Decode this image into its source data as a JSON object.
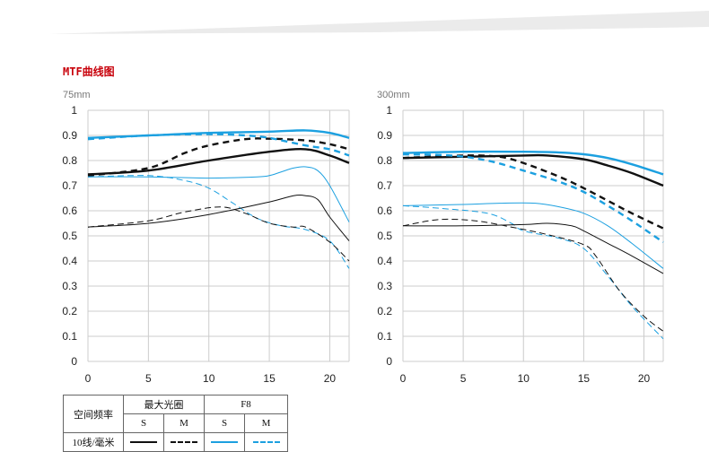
{
  "header": {
    "title": "MTF曲线图"
  },
  "colors": {
    "black": "#111111",
    "blue": "#1ca0e0",
    "grid": "#cccccc",
    "title": "#c8000a"
  },
  "chart_data": [
    {
      "type": "line",
      "title": "75mm",
      "xlim": [
        0,
        21.6
      ],
      "ylim": [
        0,
        1
      ],
      "x_ticks": [
        "0",
        "5",
        "10",
        "15",
        "20"
      ],
      "y_ticks": [
        "0",
        "0.1",
        "0.2",
        "0.3",
        "0.4",
        "0.5",
        "0.6",
        "0.7",
        "0.8",
        "0.9",
        "1"
      ],
      "grid": true,
      "series": [
        {
          "name": "最大光圈 S 10线/毫米",
          "color": "black",
          "style": "solid",
          "points": [
            [
              0,
              0.745
            ],
            [
              5,
              0.76
            ],
            [
              10,
              0.8
            ],
            [
              15,
              0.835
            ],
            [
              18,
              0.845
            ],
            [
              20,
              0.82
            ],
            [
              21.6,
              0.79
            ]
          ]
        },
        {
          "name": "最大光圈 M 10线/毫米",
          "color": "black",
          "style": "dashed",
          "points": [
            [
              0,
              0.74
            ],
            [
              5,
              0.77
            ],
            [
              8,
              0.83
            ],
            [
              10,
              0.86
            ],
            [
              13,
              0.885
            ],
            [
              15,
              0.887
            ],
            [
              18,
              0.88
            ],
            [
              20,
              0.865
            ],
            [
              21.6,
              0.845
            ]
          ]
        },
        {
          "name": "F8 S 10线/毫米",
          "color": "blue",
          "style": "solid",
          "points": [
            [
              0,
              0.89
            ],
            [
              5,
              0.9
            ],
            [
              10,
              0.91
            ],
            [
              15,
              0.915
            ],
            [
              18,
              0.92
            ],
            [
              20,
              0.91
            ],
            [
              21.6,
              0.89
            ]
          ]
        },
        {
          "name": "F8 M 10线/毫米",
          "color": "blue",
          "style": "dashed",
          "points": [
            [
              0,
              0.885
            ],
            [
              5,
              0.9
            ],
            [
              10,
              0.905
            ],
            [
              13,
              0.9
            ],
            [
              15,
              0.89
            ],
            [
              18,
              0.86
            ],
            [
              20,
              0.845
            ],
            [
              21.6,
              0.82
            ]
          ]
        },
        {
          "name": "F8 S 30线/毫米",
          "color": "blue",
          "style": "solid-thin",
          "points": [
            [
              0,
              0.735
            ],
            [
              5,
              0.735
            ],
            [
              10,
              0.73
            ],
            [
              14,
              0.735
            ],
            [
              15,
              0.74
            ],
            [
              16,
              0.755
            ],
            [
              17,
              0.77
            ],
            [
              18,
              0.775
            ],
            [
              19,
              0.76
            ],
            [
              20,
              0.7
            ],
            [
              21.6,
              0.555
            ]
          ]
        },
        {
          "name": "F8 M 30线/毫米",
          "color": "blue",
          "style": "dashed-thin",
          "points": [
            [
              0,
              0.735
            ],
            [
              5,
              0.74
            ],
            [
              8,
              0.72
            ],
            [
              10,
              0.69
            ],
            [
              12,
              0.63
            ],
            [
              14,
              0.57
            ],
            [
              16,
              0.54
            ],
            [
              18,
              0.525
            ],
            [
              20,
              0.48
            ],
            [
              21.6,
              0.37
            ]
          ]
        },
        {
          "name": "最大光圈 S 30线/毫米",
          "color": "black",
          "style": "solid-thin",
          "points": [
            [
              0,
              0.535
            ],
            [
              5,
              0.55
            ],
            [
              10,
              0.585
            ],
            [
              15,
              0.635
            ],
            [
              17,
              0.66
            ],
            [
              18,
              0.66
            ],
            [
              19,
              0.645
            ],
            [
              20,
              0.575
            ],
            [
              21.6,
              0.48
            ]
          ]
        },
        {
          "name": "最大光圈 M 30线/毫米",
          "color": "black",
          "style": "dashed-thin",
          "points": [
            [
              0,
              0.535
            ],
            [
              5,
              0.56
            ],
            [
              8,
              0.595
            ],
            [
              11,
              0.615
            ],
            [
              13,
              0.59
            ],
            [
              15,
              0.55
            ],
            [
              17,
              0.535
            ],
            [
              18,
              0.535
            ],
            [
              20,
              0.475
            ],
            [
              21.6,
              0.4
            ]
          ]
        }
      ]
    },
    {
      "type": "line",
      "title": "300mm",
      "xlim": [
        0,
        21.6
      ],
      "ylim": [
        0,
        1
      ],
      "x_ticks": [
        "0",
        "5",
        "10",
        "15",
        "20"
      ],
      "y_ticks": [
        "0",
        "0.1",
        "0.2",
        "0.3",
        "0.4",
        "0.5",
        "0.6",
        "0.7",
        "0.8",
        "0.9",
        "1"
      ],
      "grid": true,
      "series": [
        {
          "name": "F8 S 10线/毫米",
          "color": "blue",
          "style": "solid",
          "points": [
            [
              0,
              0.83
            ],
            [
              5,
              0.835
            ],
            [
              10,
              0.835
            ],
            [
              13,
              0.832
            ],
            [
              15,
              0.825
            ],
            [
              17,
              0.81
            ],
            [
              19,
              0.785
            ],
            [
              21.6,
              0.745
            ]
          ]
        },
        {
          "name": "最大光圈 S 10线/毫米",
          "color": "black",
          "style": "solid",
          "points": [
            [
              0,
              0.81
            ],
            [
              5,
              0.815
            ],
            [
              10,
              0.82
            ],
            [
              12,
              0.82
            ],
            [
              15,
              0.805
            ],
            [
              17,
              0.78
            ],
            [
              19,
              0.75
            ],
            [
              21.6,
              0.7
            ]
          ]
        },
        {
          "name": "最大光圈 M 10线/毫米",
          "color": "black",
          "style": "dashed",
          "points": [
            [
              0,
              0.81
            ],
            [
              5,
              0.82
            ],
            [
              8,
              0.815
            ],
            [
              10,
              0.79
            ],
            [
              13,
              0.735
            ],
            [
              15,
              0.69
            ],
            [
              17,
              0.64
            ],
            [
              19,
              0.59
            ],
            [
              21.6,
              0.53
            ]
          ]
        },
        {
          "name": "F8 M 10线/毫米",
          "color": "blue",
          "style": "dashed",
          "points": [
            [
              0,
              0.825
            ],
            [
              4,
              0.82
            ],
            [
              7,
              0.8
            ],
            [
              10,
              0.76
            ],
            [
              13,
              0.715
            ],
            [
              15,
              0.675
            ],
            [
              17,
              0.62
            ],
            [
              19,
              0.56
            ],
            [
              21.6,
              0.475
            ]
          ]
        },
        {
          "name": "F8 S 30线/毫米",
          "color": "blue",
          "style": "solid-thin",
          "points": [
            [
              0,
              0.62
            ],
            [
              5,
              0.625
            ],
            [
              8,
              0.63
            ],
            [
              11,
              0.63
            ],
            [
              13,
              0.615
            ],
            [
              15,
              0.59
            ],
            [
              17,
              0.54
            ],
            [
              19,
              0.47
            ],
            [
              21.6,
              0.37
            ]
          ]
        },
        {
          "name": "F8 M 30线/毫米",
          "color": "blue",
          "style": "dashed-thin",
          "points": [
            [
              0,
              0.62
            ],
            [
              3,
              0.61
            ],
            [
              7,
              0.59
            ],
            [
              9,
              0.55
            ],
            [
              10,
              0.52
            ],
            [
              13,
              0.49
            ],
            [
              15,
              0.45
            ],
            [
              17,
              0.34
            ],
            [
              19,
              0.22
            ],
            [
              21.6,
              0.09
            ]
          ]
        },
        {
          "name": "最大光圈 S 30线/毫米",
          "color": "black",
          "style": "solid-thin",
          "points": [
            [
              0,
              0.54
            ],
            [
              5,
              0.54
            ],
            [
              10,
              0.545
            ],
            [
              12,
              0.55
            ],
            [
              14,
              0.54
            ],
            [
              15,
              0.52
            ],
            [
              17,
              0.47
            ],
            [
              19,
              0.42
            ],
            [
              21.6,
              0.35
            ]
          ]
        },
        {
          "name": "最大光圈 M 30线/毫米",
          "color": "black",
          "style": "dashed-thin",
          "points": [
            [
              0,
              0.54
            ],
            [
              3,
              0.565
            ],
            [
              6,
              0.56
            ],
            [
              9,
              0.535
            ],
            [
              12,
              0.505
            ],
            [
              15,
              0.465
            ],
            [
              16,
              0.42
            ],
            [
              18,
              0.28
            ],
            [
              20,
              0.18
            ],
            [
              21.6,
              0.12
            ]
          ]
        }
      ]
    }
  ],
  "legend_table": {
    "row_header": "空间频率",
    "group1": "最大光圈",
    "group2": "F8",
    "s": "S",
    "m": "M",
    "row1": "10线/毫米"
  }
}
